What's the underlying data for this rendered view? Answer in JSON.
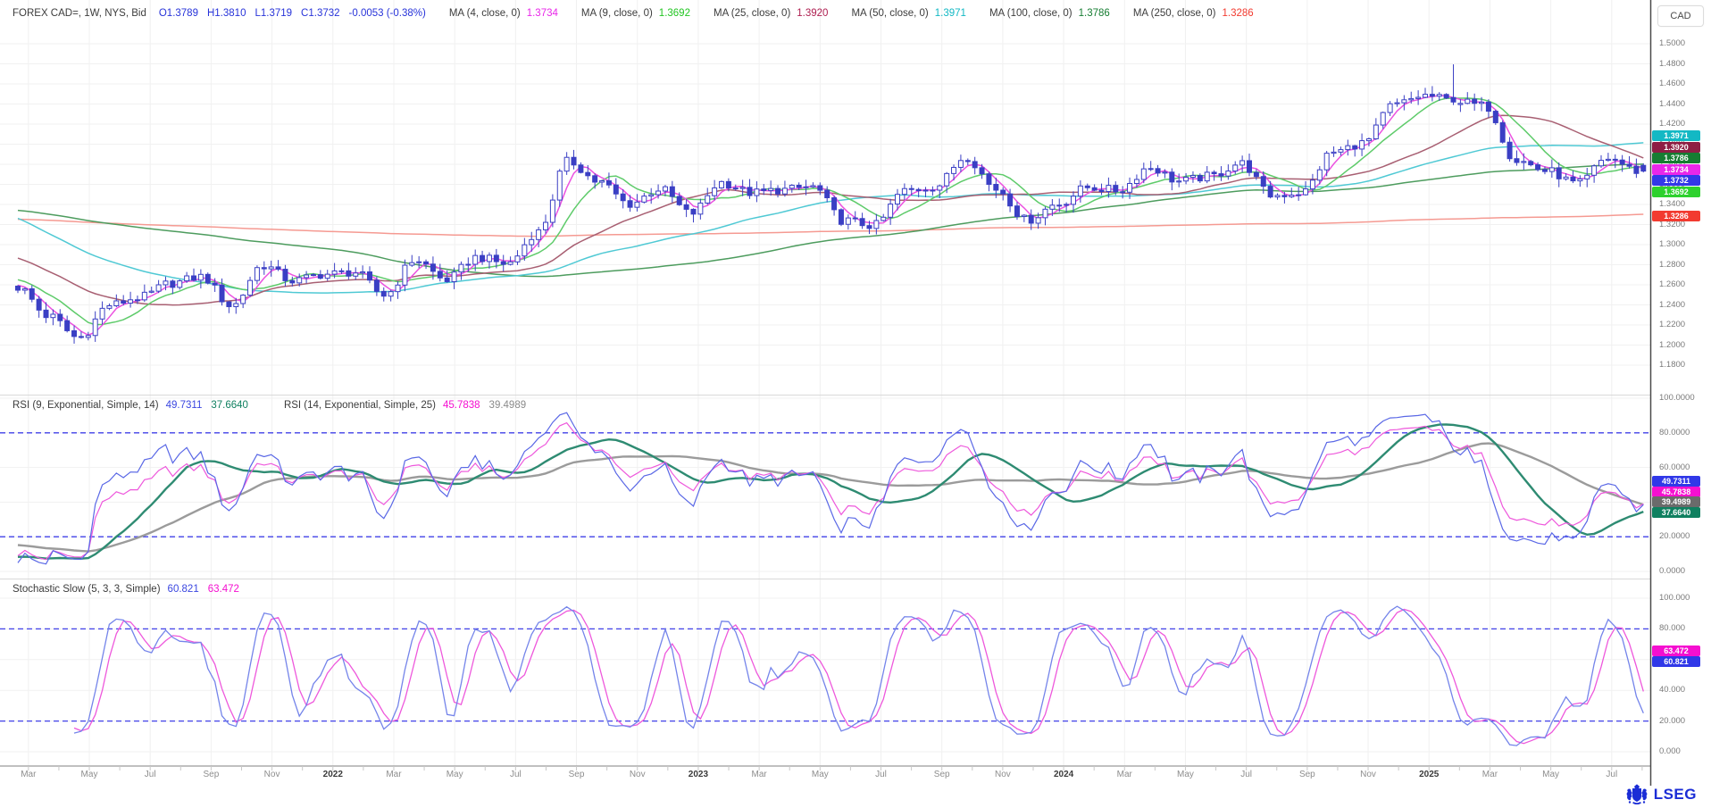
{
  "header": {
    "instrument": "FOREX CAD=, 1W, NYS, Bid",
    "open": "O1.3789",
    "high": "H1.3810",
    "low": "L1.3719",
    "close": "C1.3732",
    "change": "-0.0053 (-0.38%)",
    "mas": [
      {
        "label": "MA (4, close, 0)",
        "value": "1.3734",
        "color": "#e927e9",
        "line": "#ec52e0"
      },
      {
        "label": "MA (9, close, 0)",
        "value": "1.3692",
        "color": "#22c522",
        "line": "#5ecb6a"
      },
      {
        "label": "MA (25, close, 0)",
        "value": "1.3920",
        "color": "#ae1e50",
        "line": "#a85f72"
      },
      {
        "label": "MA (50, close, 0)",
        "value": "1.3971",
        "color": "#13b8c4",
        "line": "#4fc9d4"
      },
      {
        "label": "MA (100, close, 0)",
        "value": "1.3786",
        "color": "#167d32",
        "line": "#4d9c5e"
      },
      {
        "label": "MA (250, close, 0)",
        "value": "1.3286",
        "color": "#f23b30",
        "line": "#f59a92"
      }
    ]
  },
  "axis": {
    "currency_label": "CAD",
    "price_ticks": [
      "1.5000",
      "1.4800",
      "1.4600",
      "1.4400",
      "1.4200",
      "1.4000",
      "1.3800",
      "1.3600",
      "1.3400",
      "1.3200",
      "1.3000",
      "1.2800",
      "1.2600",
      "1.2400",
      "1.2200",
      "1.2000",
      "1.1800"
    ],
    "price_badges": [
      {
        "value": "1.3971",
        "bg": "#13b8c4"
      },
      {
        "value": "1.3920",
        "bg": "#8e1e44"
      },
      {
        "value": "1.3786",
        "bg": "#167d32"
      },
      {
        "value": "1.3734",
        "bg": "#e927e9"
      },
      {
        "value": "1.3732",
        "bg": "#3338e8"
      },
      {
        "value": "1.3692",
        "bg": "#2ed12e"
      },
      {
        "value": "1.3286",
        "bg": "#f23b30"
      }
    ],
    "time_labels": [
      {
        "text": "Mar"
      },
      {
        "text": "May"
      },
      {
        "text": "Jul"
      },
      {
        "text": "Sep"
      },
      {
        "text": "Nov"
      },
      {
        "text": "2022",
        "year": true
      },
      {
        "text": "Mar"
      },
      {
        "text": "May"
      },
      {
        "text": "Jul"
      },
      {
        "text": "Sep"
      },
      {
        "text": "Nov"
      },
      {
        "text": "2023",
        "year": true
      },
      {
        "text": "Mar"
      },
      {
        "text": "May"
      },
      {
        "text": "Jul"
      },
      {
        "text": "Sep"
      },
      {
        "text": "Nov"
      },
      {
        "text": "2024",
        "year": true
      },
      {
        "text": "Mar"
      },
      {
        "text": "May"
      },
      {
        "text": "Jul"
      },
      {
        "text": "Sep"
      },
      {
        "text": "Nov"
      },
      {
        "text": "2025",
        "year": true
      },
      {
        "text": "Mar"
      },
      {
        "text": "May"
      },
      {
        "text": "Jul"
      }
    ]
  },
  "rsi": {
    "groups": [
      {
        "label": "RSI (9, Exponential, Simple, 14)",
        "values": [
          {
            "text": "49.7311",
            "color": "#3a46e0"
          },
          {
            "text": "37.6640",
            "color": "#108060"
          }
        ]
      },
      {
        "label": "RSI (14, Exponential, Simple, 25)",
        "values": [
          {
            "text": "45.7838",
            "color": "#f50fd0"
          },
          {
            "text": "39.4989",
            "color": "#8a8a8a"
          }
        ]
      }
    ],
    "ticks": [
      "100.0000",
      "80.0000",
      "60.0000",
      "40.0000",
      "20.0000",
      "0.0000"
    ],
    "badges": [
      {
        "value": "49.7311",
        "bg": "#3038e8"
      },
      {
        "value": "45.7838",
        "bg": "#f50fd0"
      },
      {
        "value": "39.4989",
        "bg": "#6b6b6b"
      },
      {
        "value": "37.6640",
        "bg": "#108060"
      }
    ]
  },
  "stoch": {
    "label": "Stochastic Slow (5, 3, 3, Simple)",
    "values": [
      {
        "text": "60.821",
        "color": "#3a46e0"
      },
      {
        "text": "63.472",
        "color": "#f50fd0"
      }
    ],
    "ticks": [
      "100.000",
      "80.000",
      "60.000",
      "40.000",
      "20.000",
      "0.000"
    ],
    "badges": [
      {
        "value": "63.472",
        "bg": "#f50fd0"
      },
      {
        "value": "60.821",
        "bg": "#3038e8"
      }
    ]
  },
  "footer": {
    "logo_text": "LSEG"
  },
  "chart_data": {
    "type": "candlestick",
    "symbol": "FOREX CAD=",
    "interval": "1W",
    "venue": "NYS",
    "side": "Bid",
    "last_bar": {
      "open": 1.3789,
      "high": 1.381,
      "low": 1.3719,
      "close": 1.3732,
      "change": -0.0053,
      "change_pct": -0.38
    },
    "price_axis": {
      "min": 1.18,
      "max": 1.5,
      "tick_step": 0.02
    },
    "monthly_close_anchors": {
      "start": "2021-03",
      "values": [
        1.2575,
        1.229,
        1.207,
        1.24,
        1.2475,
        1.2615,
        1.268,
        1.239,
        1.2795,
        1.264,
        1.2705,
        1.2725,
        1.25,
        1.285,
        1.265,
        1.2875,
        1.281,
        1.3125,
        1.383,
        1.3625,
        1.3405,
        1.3555,
        1.331,
        1.362,
        1.3515,
        1.3545,
        1.3575,
        1.324,
        1.319,
        1.3535,
        1.358,
        1.3875,
        1.3555,
        1.3245,
        1.3405,
        1.357,
        1.354,
        1.377,
        1.363,
        1.368,
        1.381,
        1.349,
        1.352,
        1.392,
        1.401,
        1.439,
        1.4485,
        1.443,
        1.438,
        1.384,
        1.3735,
        1.3605,
        1.386,
        1.3732
      ]
    },
    "spike_2025_high": 1.4795,
    "moving_averages": [
      {
        "period": 4,
        "value": 1.3734
      },
      {
        "period": 9,
        "value": 1.3692
      },
      {
        "period": 25,
        "value": 1.392
      },
      {
        "period": 50,
        "value": 1.3971
      },
      {
        "period": 100,
        "value": 1.3786
      },
      {
        "period": 250,
        "value": 1.3286
      }
    ],
    "rsi_panel": {
      "range": [
        0,
        100
      ],
      "thresholds": [
        80,
        20
      ],
      "rsi9": 49.7311,
      "rsi9_signal": 37.664,
      "rsi14": 45.7838,
      "rsi14_signal": 39.4989
    },
    "stoch_panel": {
      "range": [
        0,
        100
      ],
      "thresholds": [
        80,
        20
      ],
      "slow_k": 60.821,
      "slow_d": 63.472
    }
  }
}
